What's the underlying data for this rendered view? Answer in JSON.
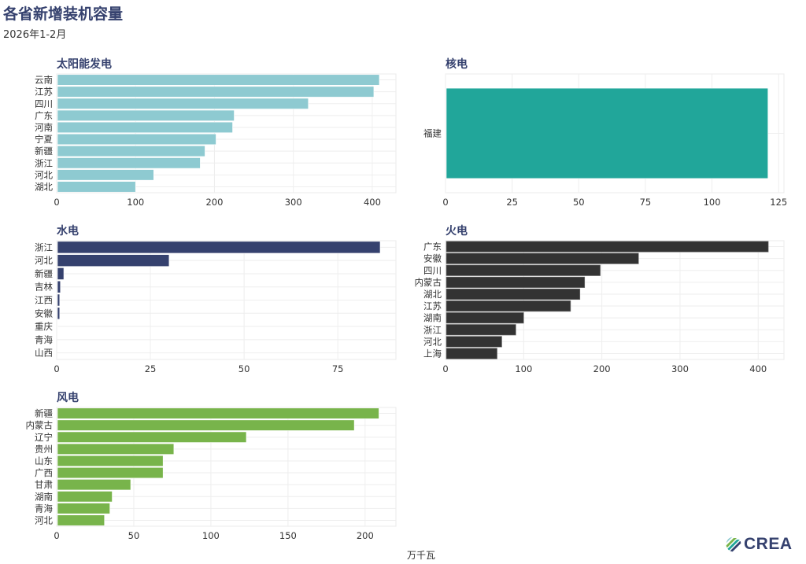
{
  "header": {
    "title": "各省新增装机容量",
    "subtitle": "2026年1-2月"
  },
  "x_axis_unit": "万千瓦",
  "logo": {
    "text": "CREA",
    "icon": "crea-logo-icon"
  },
  "colors": {
    "title": "#35416e",
    "solar": "#8ecad1",
    "nuclear": "#21a69a",
    "hydro": "#35416e",
    "thermal": "#333333",
    "wind": "#78b44b"
  },
  "chart_data": [
    {
      "type": "bar",
      "orientation": "horizontal",
      "title": "太阳能发电",
      "color": "#8ecad1",
      "categories": [
        "云南",
        "江苏",
        "四川",
        "广东",
        "河南",
        "宁夏",
        "新疆",
        "浙江",
        "河北",
        "湖北"
      ],
      "values": [
        409,
        402,
        319,
        225,
        223,
        202,
        188,
        182,
        123,
        100
      ],
      "xlim": [
        0,
        430
      ],
      "xticks": [
        0,
        100,
        200,
        300,
        400
      ],
      "xlabel": "万千瓦",
      "grid": true
    },
    {
      "type": "bar",
      "orientation": "horizontal",
      "title": "核电",
      "color": "#21a69a",
      "categories": [
        "福建"
      ],
      "values": [
        121
      ],
      "xlim": [
        0,
        127
      ],
      "xticks": [
        0,
        25,
        50,
        75,
        100,
        125
      ],
      "xlabel": "万千瓦",
      "grid": true
    },
    {
      "type": "bar",
      "orientation": "horizontal",
      "title": "水电",
      "color": "#35416e",
      "categories": [
        "浙江",
        "河北",
        "新疆",
        "吉林",
        "江西",
        "安徽",
        "重庆",
        "青海",
        "山西"
      ],
      "values": [
        86.3,
        30.0,
        1.9,
        1.0,
        0.8,
        0.8,
        0.3,
        0.05,
        0.02
      ],
      "xlim": [
        0,
        90.5
      ],
      "xticks": [
        0,
        25,
        50,
        75
      ],
      "xlabel": "万千瓦",
      "grid": true
    },
    {
      "type": "bar",
      "orientation": "horizontal",
      "title": "火电",
      "color": "#333333",
      "categories": [
        "广东",
        "安徽",
        "四川",
        "内蒙古",
        "湖北",
        "江苏",
        "湖南",
        "浙江",
        "河北",
        "上海"
      ],
      "values": [
        413,
        247,
        198,
        178,
        172,
        160,
        100,
        90,
        72,
        66
      ],
      "xlim": [
        0,
        433
      ],
      "xticks": [
        0,
        100,
        200,
        300,
        400
      ],
      "xlabel": "万千瓦",
      "grid": true
    },
    {
      "type": "bar",
      "orientation": "horizontal",
      "title": "风电",
      "color": "#78b44b",
      "categories": [
        "新疆",
        "内蒙古",
        "辽宁",
        "贵州",
        "山东",
        "广西",
        "甘肃",
        "湖南",
        "青海",
        "河北"
      ],
      "values": [
        209,
        193,
        123,
        76,
        69,
        69,
        48,
        36,
        34.5,
        31
      ],
      "xlim": [
        0,
        220
      ],
      "xticks": [
        0,
        50,
        100,
        150,
        200
      ],
      "xlabel": "万千瓦",
      "grid": true
    }
  ]
}
